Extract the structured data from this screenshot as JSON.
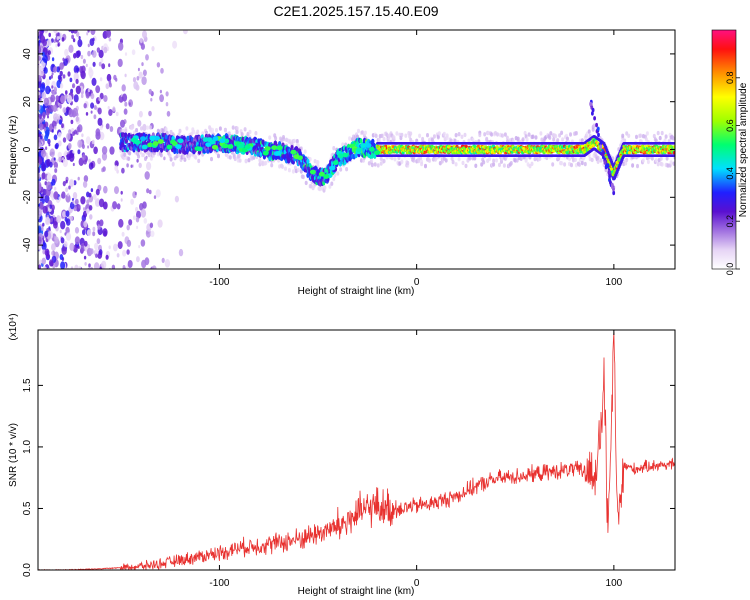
{
  "title": "C2E1.2025.157.15.40.E09",
  "chart_data": [
    {
      "type": "heatmap",
      "xlabel": "Height of straight line (km)",
      "ylabel": "Frequency (Hz)",
      "xlim": [
        -192,
        131
      ],
      "ylim": [
        -50,
        50
      ],
      "xticks": [
        -100,
        0,
        100
      ],
      "yticks": [
        -40,
        -20,
        0,
        20,
        40
      ],
      "colorbar": {
        "label": "Normalized spectral amplitude",
        "range": [
          0,
          1
        ],
        "ticks": [
          "0.0",
          "0.2",
          "0.4",
          "0.6",
          "0.8"
        ]
      },
      "ridge": [
        [
          -145,
          3
        ],
        [
          -130,
          3
        ],
        [
          -120,
          2
        ],
        [
          -110,
          2
        ],
        [
          -100,
          3
        ],
        [
          -90,
          2
        ],
        [
          -80,
          1
        ],
        [
          -75,
          -1
        ],
        [
          -70,
          0
        ],
        [
          -65,
          -2
        ],
        [
          -60,
          -3
        ],
        [
          -55,
          -8
        ],
        [
          -50,
          -12
        ],
        [
          -45,
          -10
        ],
        [
          -40,
          -4
        ],
        [
          -30,
          1
        ],
        [
          -20,
          0
        ],
        [
          0,
          0
        ],
        [
          50,
          0
        ],
        [
          85,
          0
        ],
        [
          90,
          3
        ],
        [
          95,
          0
        ],
        [
          100,
          -10
        ],
        [
          105,
          0
        ],
        [
          131,
          0
        ]
      ]
    },
    {
      "type": "line",
      "xlabel": "Height of straight line (km)",
      "ylabel": "SNR (10 * v/v)",
      "y_multiplier": "(x10⁴)",
      "xlim": [
        -192,
        131
      ],
      "ylim": [
        0,
        1.95
      ],
      "xticks": [
        -100,
        0,
        100
      ],
      "yticks": [
        "0.0",
        "0.5",
        "1.0",
        "1.5"
      ],
      "series": [
        {
          "color": "#e8312f",
          "x": [
            -192,
            -180,
            -160,
            -140,
            -130,
            -120,
            -110,
            -100,
            -90,
            -80,
            -70,
            -60,
            -50,
            -40,
            -35,
            -30,
            -25,
            -20,
            -15,
            -10,
            0,
            10,
            20,
            30,
            40,
            50,
            60,
            70,
            80,
            85,
            90,
            93,
            95,
            97,
            100,
            102,
            105,
            110,
            120,
            131
          ],
          "y": [
            0.0,
            0.0,
            0.01,
            0.03,
            0.05,
            0.08,
            0.11,
            0.14,
            0.18,
            0.2,
            0.22,
            0.25,
            0.3,
            0.35,
            0.4,
            0.45,
            0.5,
            0.52,
            0.5,
            0.5,
            0.52,
            0.55,
            0.6,
            0.68,
            0.74,
            0.76,
            0.78,
            0.8,
            0.82,
            0.8,
            0.78,
            1.0,
            1.6,
            0.2,
            1.9,
            0.3,
            0.85,
            0.82,
            0.85,
            0.86
          ]
        }
      ]
    }
  ]
}
